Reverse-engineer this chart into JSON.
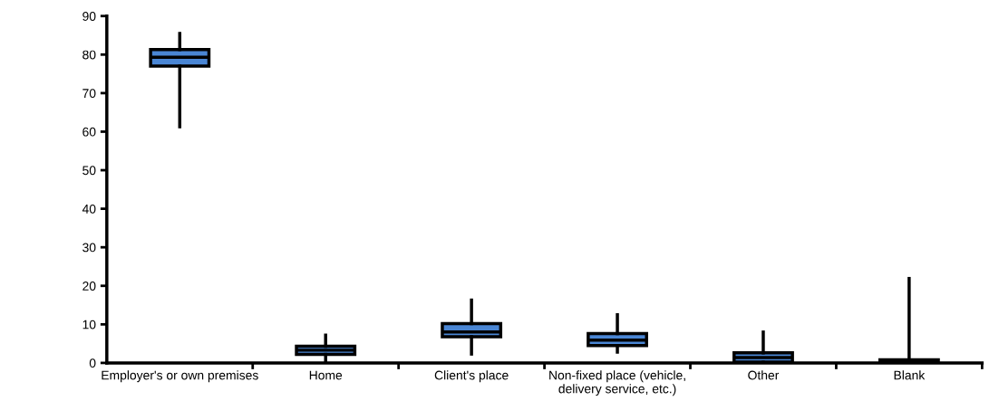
{
  "chart_data": {
    "type": "box",
    "categories": [
      "Employer's or own premises",
      "Home",
      "Client's place",
      "Non-fixed place (vehicle, delivery service, etc.)",
      "Other",
      "Blank"
    ],
    "boxes": [
      {
        "low": 61.3,
        "q1": 77,
        "median": 79.3,
        "q3": 81.3,
        "high": 85.5
      },
      {
        "low": 0.5,
        "q1": 2.2,
        "median": 3.3,
        "q3": 4.3,
        "high": 7.2
      },
      {
        "low": 2.3,
        "q1": 6.8,
        "median": 8.0,
        "q3": 10.2,
        "high": 16.3
      },
      {
        "low": 2.8,
        "q1": 4.5,
        "median": 5.9,
        "q3": 7.6,
        "high": 12.5
      },
      {
        "low": 0,
        "q1": 0.2,
        "median": 1.4,
        "q3": 2.6,
        "high": 8.0
      },
      {
        "low": 0,
        "q1": 0,
        "median": 0.4,
        "q3": 0.8,
        "high": 21.9
      }
    ],
    "color": "#4a86d4",
    "ylim": [
      0,
      90
    ],
    "yticks": [
      0,
      10,
      20,
      30,
      40,
      50,
      60,
      70,
      80,
      90
    ],
    "grid": false
  }
}
